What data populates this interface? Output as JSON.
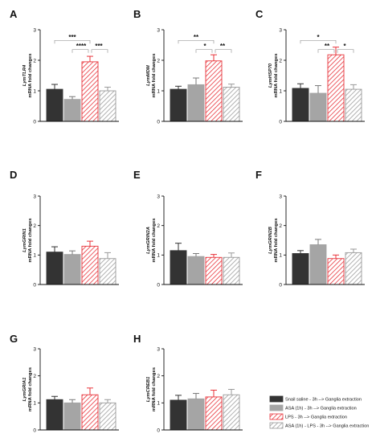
{
  "ylabel_suffix": "mRNA fold changes",
  "colors": {
    "saline": "#333333",
    "asa": "#a5a5a5",
    "lps": "#e8333a",
    "asa_lps": "#b3b3b3"
  },
  "legend": [
    {
      "key": "saline",
      "label": "Snail saline - 3h --> Ganglia extraction",
      "pattern": "solid-dark"
    },
    {
      "key": "asa",
      "label": "ASA (1h) - 3h --> Ganglia extraction",
      "pattern": "solid-grey"
    },
    {
      "key": "lps",
      "label": "LPS - 3h --> Ganglia extraction",
      "pattern": "red-hatch"
    },
    {
      "key": "asa_lps",
      "label": "ASA (1h) - LPS - 3h --> Ganglia extraction",
      "pattern": "grey-hatch"
    }
  ],
  "chart_data": [
    {
      "panel": "A",
      "type": "bar",
      "gene": "LymTLR4",
      "ylim": [
        0,
        3
      ],
      "yticks": [
        0,
        1,
        2,
        3
      ],
      "categories": [
        "saline",
        "asa",
        "lps",
        "asa_lps"
      ],
      "values": [
        1.05,
        0.72,
        1.95,
        1.0
      ],
      "errors": [
        0.16,
        0.09,
        0.18,
        0.12
      ],
      "significance": [
        {
          "from": 0,
          "to": 2,
          "label": "***"
        },
        {
          "from": 1,
          "to": 2,
          "label": "****"
        },
        {
          "from": 2,
          "to": 3,
          "label": "***"
        }
      ]
    },
    {
      "panel": "B",
      "type": "bar",
      "gene": "LymMDM",
      "ylim": [
        0,
        3
      ],
      "yticks": [
        0,
        1,
        2,
        3
      ],
      "categories": [
        "saline",
        "asa",
        "lps",
        "asa_lps"
      ],
      "values": [
        1.05,
        1.2,
        1.98,
        1.12
      ],
      "errors": [
        0.1,
        0.22,
        0.2,
        0.1
      ],
      "significance": [
        {
          "from": 0,
          "to": 2,
          "label": "**"
        },
        {
          "from": 1,
          "to": 2,
          "label": "*"
        },
        {
          "from": 2,
          "to": 3,
          "label": "**"
        }
      ]
    },
    {
      "panel": "C",
      "type": "bar",
      "gene": "LymHSP70",
      "ylim": [
        0,
        3
      ],
      "yticks": [
        0,
        1,
        2,
        3
      ],
      "categories": [
        "saline",
        "asa",
        "lps",
        "asa_lps"
      ],
      "values": [
        1.08,
        0.92,
        2.18,
        1.05
      ],
      "errors": [
        0.15,
        0.25,
        0.25,
        0.15
      ],
      "significance": [
        {
          "from": 0,
          "to": 2,
          "label": "*"
        },
        {
          "from": 1,
          "to": 2,
          "label": "**"
        },
        {
          "from": 2,
          "to": 3,
          "label": "*"
        }
      ]
    },
    {
      "panel": "D",
      "type": "bar",
      "gene": "LymGRIN1",
      "ylim": [
        0,
        3
      ],
      "yticks": [
        0,
        1,
        2,
        3
      ],
      "categories": [
        "saline",
        "asa",
        "lps",
        "asa_lps"
      ],
      "values": [
        1.1,
        1.02,
        1.3,
        0.88
      ],
      "errors": [
        0.18,
        0.12,
        0.17,
        0.2
      ],
      "significance": []
    },
    {
      "panel": "E",
      "type": "bar",
      "gene": "LymGRIN2A",
      "ylim": [
        0,
        3
      ],
      "yticks": [
        0,
        1,
        2,
        3
      ],
      "categories": [
        "saline",
        "asa",
        "lps",
        "asa_lps"
      ],
      "values": [
        1.15,
        0.95,
        0.92,
        0.92
      ],
      "errors": [
        0.25,
        0.1,
        0.1,
        0.15
      ],
      "significance": []
    },
    {
      "panel": "F",
      "type": "bar",
      "gene": "LymGRIN2B",
      "ylim": [
        0,
        3
      ],
      "yticks": [
        0,
        1,
        2,
        3
      ],
      "categories": [
        "saline",
        "asa",
        "lps",
        "asa_lps"
      ],
      "values": [
        1.05,
        1.35,
        0.88,
        1.08
      ],
      "errors": [
        0.1,
        0.18,
        0.12,
        0.12
      ],
      "significance": []
    },
    {
      "panel": "G",
      "type": "bar",
      "gene": "LymGRIA1",
      "ylim": [
        0,
        3
      ],
      "yticks": [
        0,
        1,
        2,
        3
      ],
      "categories": [
        "saline",
        "asa",
        "lps",
        "asa_lps"
      ],
      "values": [
        1.12,
        1.0,
        1.3,
        1.0
      ],
      "errors": [
        0.12,
        0.12,
        0.25,
        0.12
      ],
      "significance": []
    },
    {
      "panel": "H",
      "type": "bar",
      "gene": "LymCREB1",
      "ylim": [
        0,
        3
      ],
      "yticks": [
        0,
        1,
        2,
        3
      ],
      "categories": [
        "saline",
        "asa",
        "lps",
        "asa_lps"
      ],
      "values": [
        1.1,
        1.15,
        1.22,
        1.3
      ],
      "errors": [
        0.18,
        0.2,
        0.25,
        0.2
      ],
      "significance": []
    }
  ]
}
